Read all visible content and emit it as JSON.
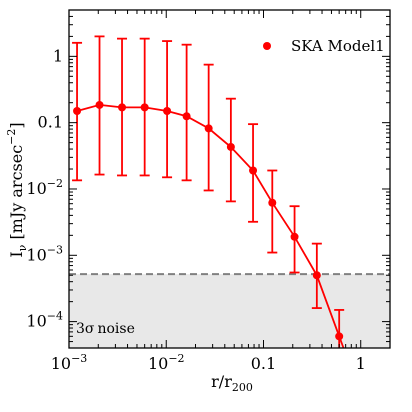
{
  "chart_data": {
    "type": "line",
    "xscale": "log",
    "yscale": "log",
    "xlim": [
      0.001,
      2
    ],
    "ylim": [
      4e-05,
      5
    ],
    "xlabel": "r/r",
    "xlabel_sub": "200",
    "ylabel_main": "I",
    "ylabel_sub": "ν",
    "ylabel_unit": " [mJy arcsec",
    "ylabel_exp": "−2",
    "ylabel_close": "]",
    "x_ticks": [
      {
        "value": 0.001,
        "base": "10",
        "exp": "−3"
      },
      {
        "value": 0.01,
        "base": "10",
        "exp": "−2"
      },
      {
        "value": 0.1,
        "label": "0.1"
      },
      {
        "value": 1,
        "label": "1"
      }
    ],
    "y_ticks": [
      {
        "value": 0.0001,
        "base": "10",
        "exp": "−4"
      },
      {
        "value": 0.001,
        "base": "10",
        "exp": "−3"
      },
      {
        "value": 0.01,
        "base": "10",
        "exp": "−2"
      },
      {
        "value": 0.1,
        "label": "0.1"
      },
      {
        "value": 1,
        "label": "1"
      }
    ],
    "series": [
      {
        "name": "SKA Model1",
        "color": "#ff0000",
        "x": [
          0.00121,
          0.00206,
          0.00351,
          0.006,
          0.0102,
          0.0162,
          0.0273,
          0.0462,
          0.0781,
          0.1232,
          0.2087,
          0.3537,
          0.6004
        ],
        "y": [
          0.15,
          0.185,
          0.17,
          0.17,
          0.15,
          0.125,
          0.082,
          0.043,
          0.019,
          0.0062,
          0.0019,
          0.0005,
          6e-05
        ],
        "yerr_low": [
          0.0135,
          0.0165,
          0.016,
          0.016,
          0.015,
          0.0135,
          0.0095,
          0.0065,
          0.0032,
          0.0011,
          0.00055,
          0.00016,
          2.5e-05
        ],
        "yerr_high": [
          1.6,
          2.0,
          1.85,
          1.85,
          1.7,
          1.5,
          0.75,
          0.23,
          0.095,
          0.019,
          0.0055,
          0.0015,
          0.00015
        ]
      }
    ],
    "noise_level": 0.00052,
    "noise_label_symbol": "3σ",
    "noise_label_text": "noise",
    "legend": {
      "label": "SKA Model1",
      "placement": "top-right"
    }
  }
}
